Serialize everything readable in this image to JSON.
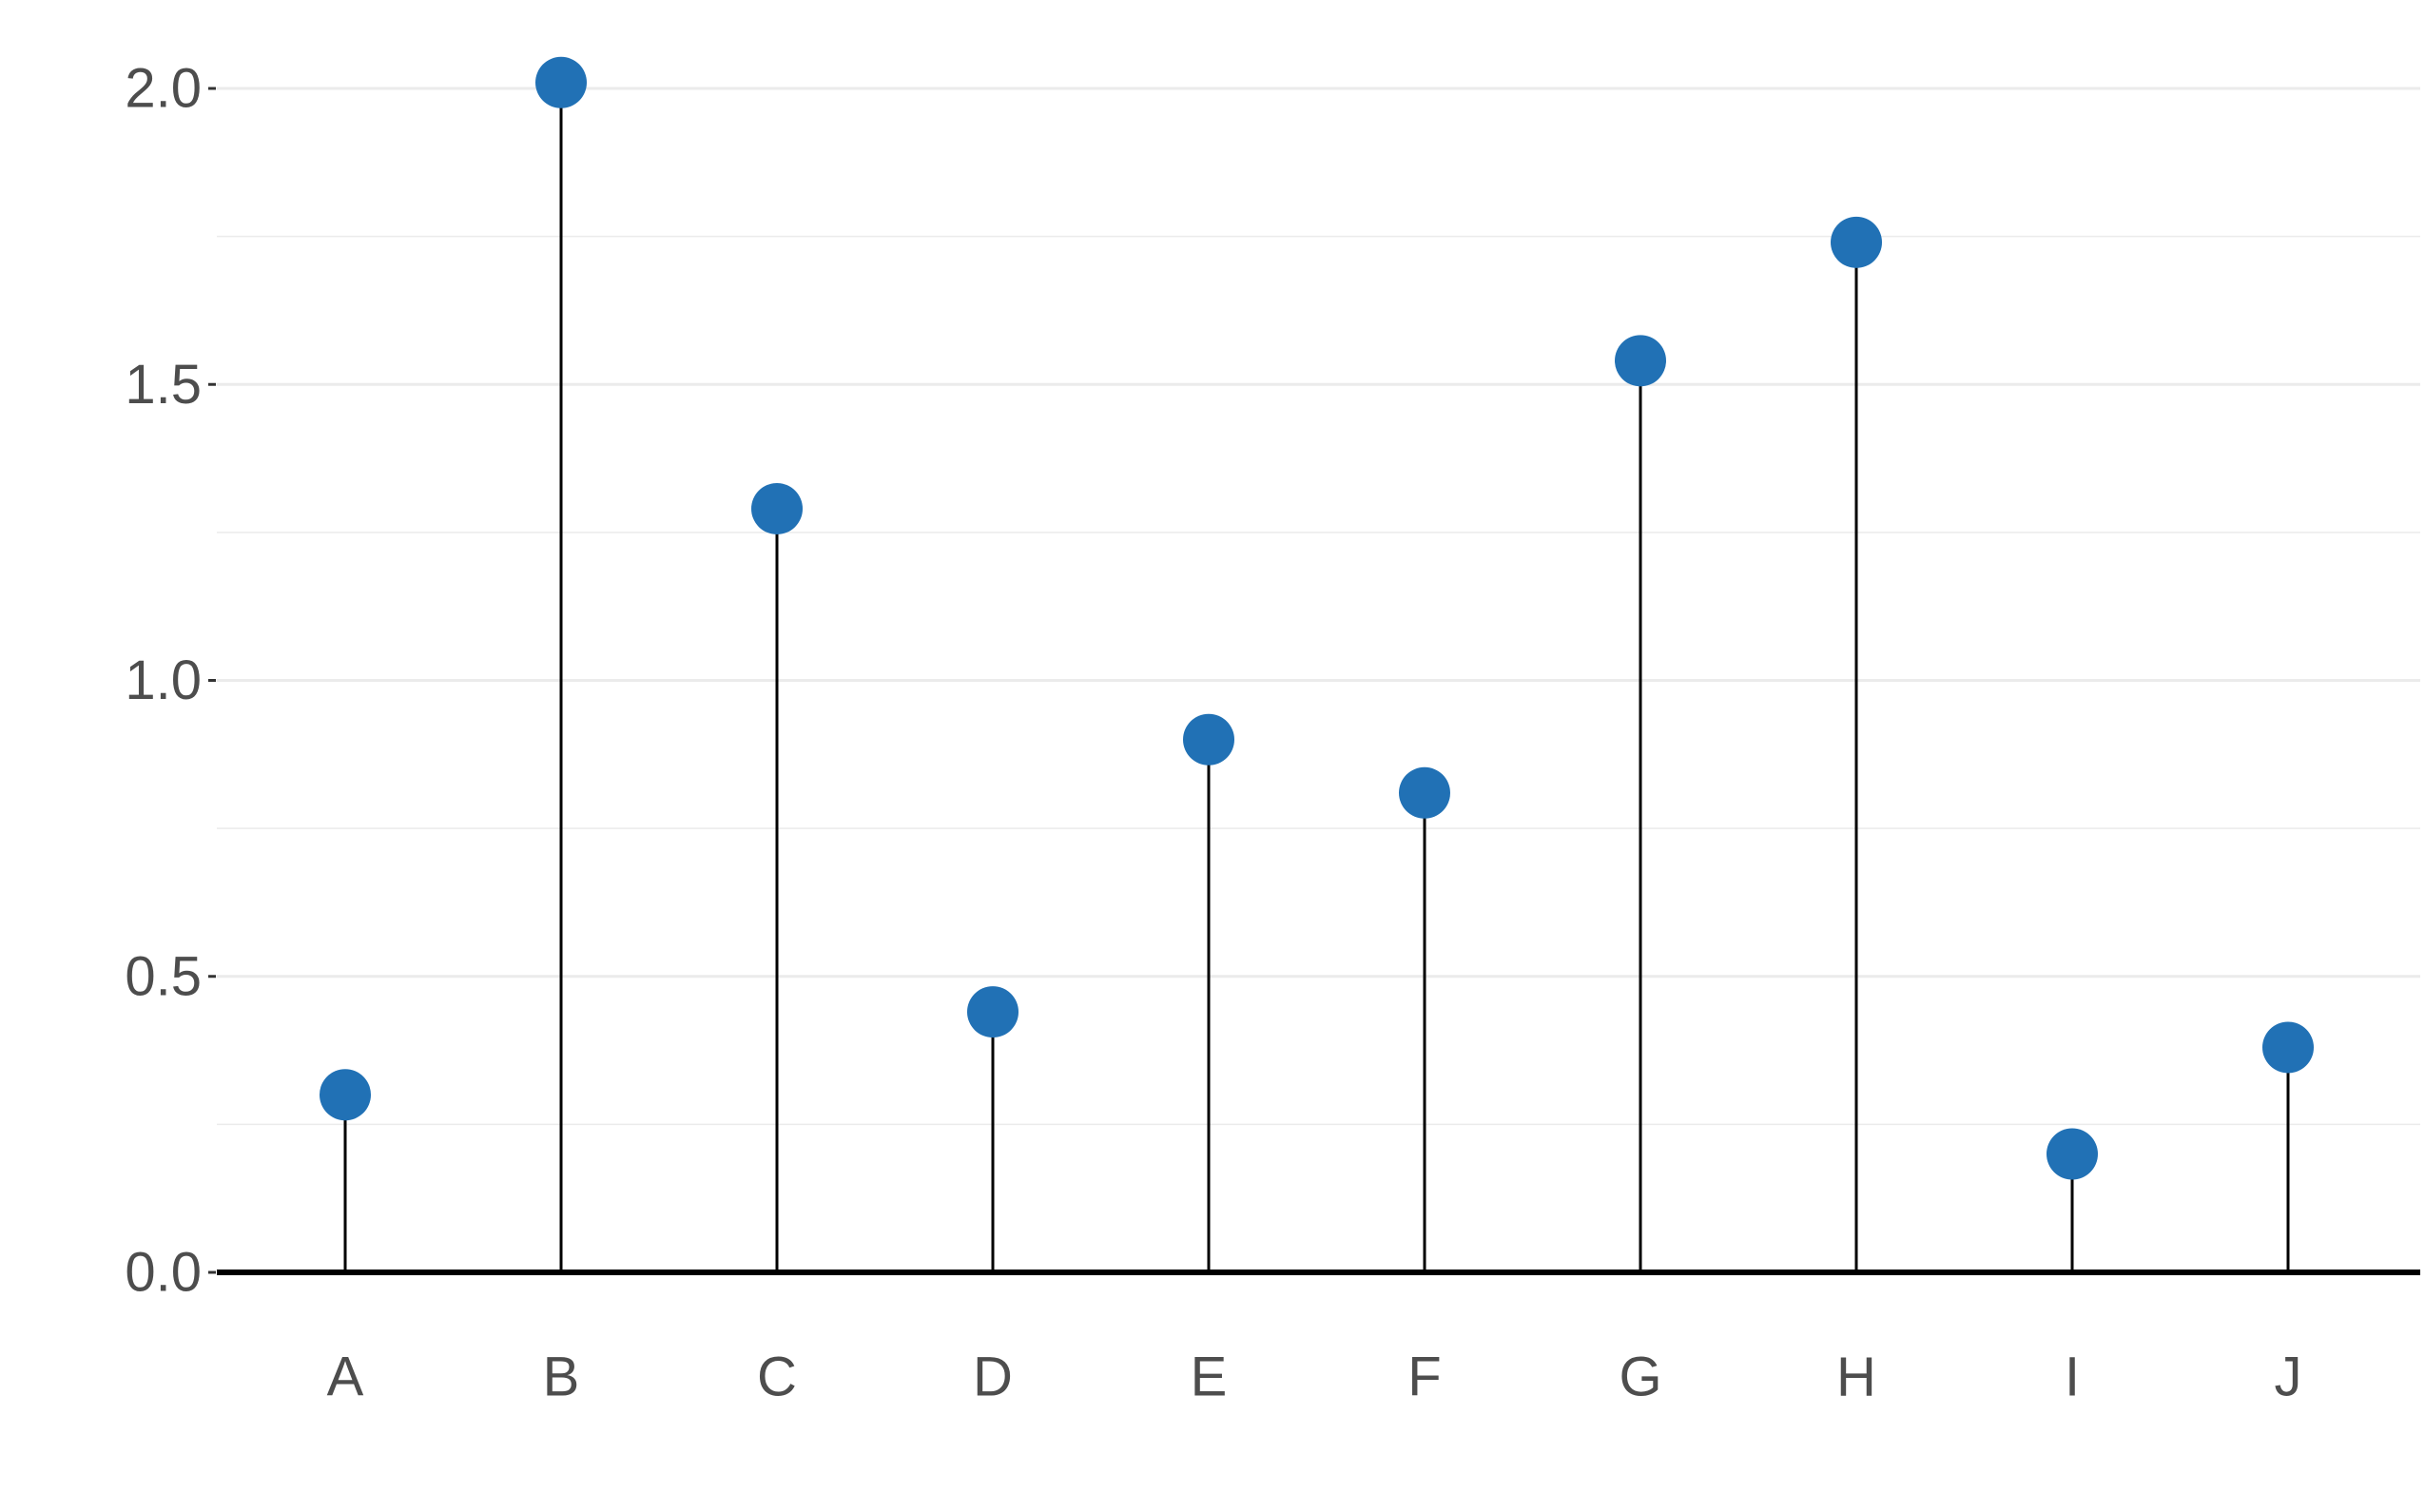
{
  "chart_data": {
    "type": "lollipop",
    "title": "",
    "xlabel": "",
    "ylabel": "",
    "categories": [
      "A",
      "B",
      "C",
      "D",
      "E",
      "F",
      "G",
      "H",
      "I",
      "J"
    ],
    "values": [
      0.3,
      2.01,
      1.29,
      0.44,
      0.9,
      0.81,
      1.54,
      1.74,
      0.2,
      0.38
    ],
    "ylim": [
      0,
      2.0
    ],
    "yticks": [
      0.0,
      0.5,
      1.0,
      1.5,
      2.0
    ],
    "ytick_labels": [
      "0.0",
      "0.5",
      "1.0",
      "1.5",
      "2.0"
    ],
    "grid": "horizontal",
    "colors": {
      "point": "#2171b5",
      "stem": "#000000",
      "baseline": "#000000",
      "gridline": "#ebebeb",
      "text": "#4d4d4d"
    }
  }
}
